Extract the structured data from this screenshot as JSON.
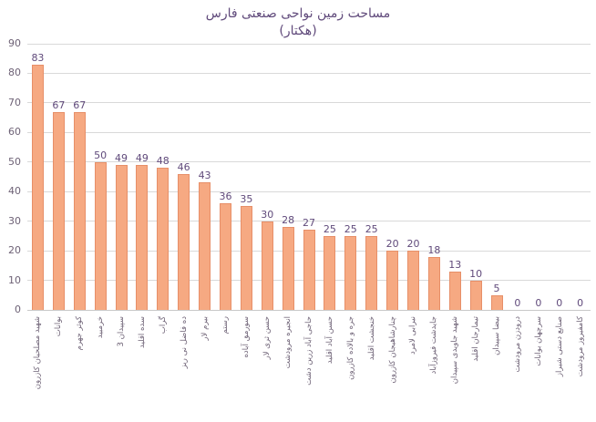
{
  "title": {
    "line1": "مساحت زمین نواحی صنعتی فارس",
    "line2": "(هکتار)"
  },
  "chart_data": {
    "type": "bar",
    "title": "مساحت زمین نواحی صنعتی فارس (هکتار)",
    "categories": [
      "شهید مصلحیان کازرون",
      "بوانات",
      "کوثر جهرم",
      "خرمبید",
      "سپیدان 3",
      "سده اقلید",
      "گراب",
      "ده فاضل نی ریز",
      "بیرم لار",
      "رستم",
      "سورمق آباده",
      "حسن ثری لار",
      "انجیره مرودشت",
      "حاجی آباد زرین دشت",
      "حسن آباد اقلید",
      "جره و بالاده کازرون",
      "خنجشت اقلید",
      "چنارشاهیجان کازرون",
      "نیرابی لامرد",
      "جایدشت فیروزآباد",
      "شهید جاویدی سپیدان",
      "تیمارجان اقلید",
      "بیضا سپیدان",
      "درودزن مرودشت",
      "سرچهان بوانات",
      "صنایع دستی شیراز",
      "کامفیروز مرودشت"
    ],
    "values": [
      83,
      67,
      67,
      50,
      49,
      49,
      48,
      46,
      43,
      36,
      35,
      30,
      28,
      27,
      25,
      25,
      25,
      20,
      20,
      18,
      13,
      10,
      5,
      0,
      0,
      0,
      0
    ],
    "xlabel": "",
    "ylabel": "",
    "ylim": [
      0,
      90
    ],
    "ytick_step": 10,
    "grid": true,
    "legend": "none",
    "colors": {
      "bar_fill": "#F6A982",
      "bar_border": "#E78F68",
      "title_color": "#604A7B",
      "data_label_color": "#604A7B",
      "axis_tick_color": "#6E6276",
      "gridline_color": "#D9D9D9",
      "background": "#FFFFFF"
    }
  }
}
